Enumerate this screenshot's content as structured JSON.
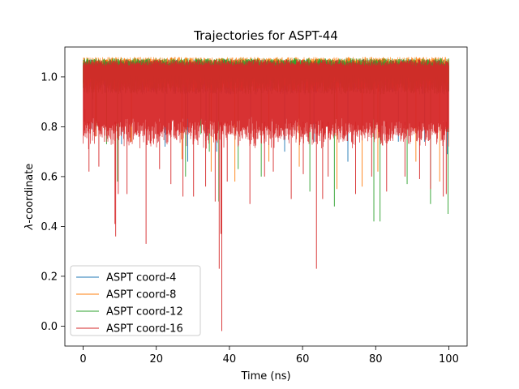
{
  "chart_data": {
    "type": "line",
    "title": "Trajectories for ASPT-44",
    "xlabel": "Time (ns)",
    "ylabel_prefix": "λ",
    "ylabel_suffix": "-coordinate",
    "xlim": [
      -5,
      105
    ],
    "ylim": [
      -0.08,
      1.12
    ],
    "xticks": [
      0,
      20,
      40,
      60,
      80,
      100
    ],
    "yticks": [
      0.0,
      0.2,
      0.4,
      0.6,
      0.8,
      1.0
    ],
    "ytick_labels": [
      "0.0",
      "0.2",
      "0.4",
      "0.6",
      "0.8",
      "1.0"
    ],
    "legend_position": "lower-left",
    "series": [
      {
        "name": "ASPT coord-4",
        "color": "#1f77b4",
        "band_top": 1.07,
        "band_bottom": 0.93,
        "dips": [
          [
            0.3,
            0.82
          ],
          [
            2.5,
            0.79
          ],
          [
            10.5,
            0.73
          ],
          [
            22.4,
            0.72
          ],
          [
            28.6,
            0.66
          ],
          [
            33.6,
            0.76
          ],
          [
            36.5,
            0.7
          ],
          [
            45.8,
            0.78
          ],
          [
            55.1,
            0.7
          ],
          [
            63.1,
            0.74
          ],
          [
            72.4,
            0.66
          ],
          [
            86.2,
            0.74
          ],
          [
            93.4,
            0.74
          ],
          [
            99.6,
            0.69
          ]
        ]
      },
      {
        "name": "ASPT coord-8",
        "color": "#ff7f0e",
        "band_top": 1.08,
        "band_bottom": 0.94,
        "dips": [
          [
            3.4,
            0.76
          ],
          [
            13.2,
            0.74
          ],
          [
            27.0,
            0.67
          ],
          [
            35.0,
            0.62
          ],
          [
            41.5,
            0.58
          ],
          [
            50.8,
            0.66
          ],
          [
            59.1,
            0.64
          ],
          [
            69.4,
            0.55
          ],
          [
            76.3,
            0.56
          ],
          [
            80.6,
            0.62
          ],
          [
            91.0,
            0.66
          ],
          [
            97.5,
            0.58
          ]
        ]
      },
      {
        "name": "ASPT coord-12",
        "color": "#2ca02c",
        "band_top": 1.075,
        "band_bottom": 0.93,
        "dips": [
          [
            2.6,
            0.91
          ],
          [
            3.6,
            0.8
          ],
          [
            6.4,
            0.73
          ],
          [
            9.4,
            0.58
          ],
          [
            28.0,
            0.6
          ],
          [
            32.2,
            0.77
          ],
          [
            34.5,
            0.7
          ],
          [
            37.1,
            0.5
          ],
          [
            42.4,
            0.63
          ],
          [
            48.7,
            0.6
          ],
          [
            62.0,
            0.54
          ],
          [
            68.7,
            0.48
          ],
          [
            79.5,
            0.42
          ],
          [
            81.2,
            0.42
          ],
          [
            88.6,
            0.57
          ],
          [
            95.0,
            0.49
          ],
          [
            99.8,
            0.45
          ]
        ]
      },
      {
        "name": "ASPT coord-16",
        "color": "#d62728",
        "band_top": 1.07,
        "band_bottom": 0.77,
        "dips": [
          [
            0.5,
            0.87
          ],
          [
            1.5,
            0.71
          ],
          [
            1.6,
            0.62
          ],
          [
            4.3,
            0.64
          ],
          [
            8.7,
            0.41
          ],
          [
            8.9,
            0.36
          ],
          [
            9.6,
            0.53
          ],
          [
            12.0,
            0.53
          ],
          [
            17.2,
            0.33
          ],
          [
            20.9,
            0.63
          ],
          [
            24.0,
            0.57
          ],
          [
            27.3,
            0.52
          ],
          [
            30.2,
            0.52
          ],
          [
            33.5,
            0.56
          ],
          [
            36.1,
            0.5
          ],
          [
            37.2,
            0.23
          ],
          [
            37.7,
            0.37
          ],
          [
            37.9,
            -0.02
          ],
          [
            39.4,
            0.58
          ],
          [
            45.6,
            0.49
          ],
          [
            49.6,
            0.6
          ],
          [
            52.0,
            0.62
          ],
          [
            56.9,
            0.51
          ],
          [
            60.2,
            0.61
          ],
          [
            63.8,
            0.23
          ],
          [
            65.5,
            0.51
          ],
          [
            67.0,
            0.6
          ],
          [
            74.5,
            0.53
          ],
          [
            78.9,
            0.6
          ],
          [
            83.0,
            0.54
          ],
          [
            88.0,
            0.6
          ],
          [
            92.0,
            0.59
          ],
          [
            95.0,
            0.55
          ],
          [
            98.5,
            0.52
          ],
          [
            99.3,
            0.53
          ]
        ]
      }
    ]
  }
}
